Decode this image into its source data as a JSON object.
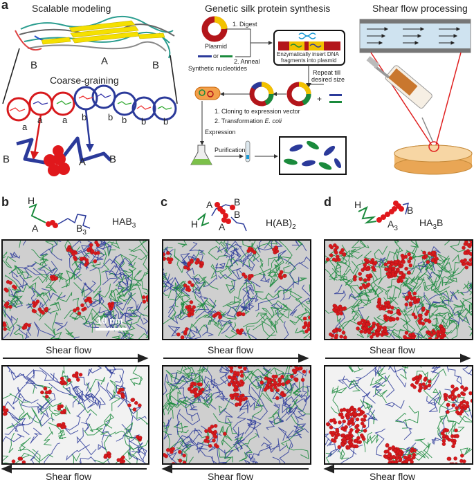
{
  "panel_a": {
    "letter": "a",
    "titles": {
      "scalable": "Scalable modeling",
      "synthesis": "Genetic silk protein synthesis",
      "shear": "Shear flow processing"
    },
    "modeling": {
      "block_labels": [
        "B",
        "A",
        "B"
      ],
      "coarse_graining": "Coarse-graining",
      "bead_labels": [
        "a",
        "a",
        "a",
        "b",
        "b",
        "b",
        "b",
        "b"
      ],
      "cg_labels": [
        "B",
        "A",
        "B"
      ]
    },
    "synthesis": {
      "plasmid": "Plasmid",
      "step_digest": "1. Digest",
      "step_anneal": "2. Anneal",
      "or": "or",
      "synthetic": "Synthetic nucleotides",
      "insert_line1": "Enzymatically insert DNA",
      "insert_line2": "fragments into plasmid",
      "repeat_line1": "Repeat till",
      "repeat_line2": "desired size",
      "plus": "+",
      "cloning": "1. Cloning to expression vector",
      "transformation_prefix": "2. Transformation ",
      "transformation_species": "E. coli",
      "expression": "Expression",
      "purification": "Purification"
    }
  },
  "panels": [
    {
      "letter": "b",
      "sequence_main": "HAB",
      "sequence_sub": "3",
      "sequence_tail": "",
      "mol_labels": [
        {
          "t": "H"
        },
        {
          "t": "A"
        },
        {
          "t": "B",
          "sub": "3"
        }
      ],
      "scale_bar": "10 nm"
    },
    {
      "letter": "c",
      "sequence_main": "H(AB)",
      "sequence_sub": "2",
      "sequence_tail": "",
      "mol_labels": [
        {
          "t": "A"
        },
        {
          "t": "B"
        },
        {
          "t": "H"
        },
        {
          "t": "A"
        },
        {
          "t": "B"
        }
      ]
    },
    {
      "letter": "d",
      "sequence_main": "HA",
      "sequence_sub": "3",
      "sequence_tail": "B",
      "mol_labels": [
        {
          "t": "H"
        },
        {
          "t": "B"
        },
        {
          "t": "A",
          "sub": "3"
        }
      ]
    }
  ],
  "shear_flow_label": "Shear flow",
  "colors": {
    "red": "#d7191c",
    "green": "#1a8a3c",
    "blue": "#2b3a9a",
    "gold": "#f2c200",
    "dark": "#222222"
  }
}
